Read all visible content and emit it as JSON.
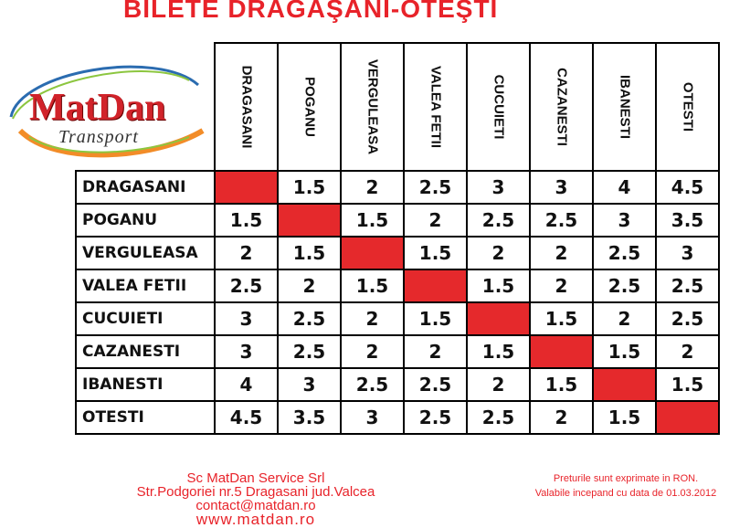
{
  "title": "BILETE DRĂGĂŞANI-OTEŞTI",
  "logo": {
    "name": "MatDan",
    "sub": "Transport",
    "colors": {
      "red": "#d1232a",
      "orange": "#f28c28",
      "green": "#8cc63f",
      "blue": "#2b6cb0"
    }
  },
  "stations": [
    "DRAGASANI",
    "POGANU",
    "VERGULEASA",
    "VALEA FETII",
    "CUCUIETI",
    "CAZANESTI",
    "IBANESTI",
    "OTESTI"
  ],
  "prices": [
    [
      "",
      "1.5",
      "2",
      "2.5",
      "3",
      "3",
      "4",
      "4.5"
    ],
    [
      "1.5",
      "",
      "1.5",
      "2",
      "2.5",
      "2.5",
      "3",
      "3.5"
    ],
    [
      "2",
      "1.5",
      "",
      "1.5",
      "2",
      "2",
      "2.5",
      "3"
    ],
    [
      "2.5",
      "2",
      "1.5",
      "",
      "1.5",
      "2",
      "2.5",
      "2.5"
    ],
    [
      "3",
      "2.5",
      "2",
      "1.5",
      "",
      "1.5",
      "2",
      "2.5"
    ],
    [
      "3",
      "2.5",
      "2",
      "2",
      "1.5",
      "",
      "1.5",
      "2"
    ],
    [
      "4",
      "3",
      "2.5",
      "2.5",
      "2",
      "1.5",
      "",
      "1.5"
    ],
    [
      "4.5",
      "3.5",
      "3",
      "2.5",
      "2.5",
      "2",
      "1.5",
      ""
    ]
  ],
  "diagonal_color": "#e5292c",
  "footer": {
    "company": "Sc MatDan Service Srl",
    "address": "Str.Podgoriei nr.5 Dragasani jud.Valcea",
    "email": "contact@matdan.ro",
    "website": "www.matdan.ro",
    "note1": "Preturile sunt exprimate in RON.",
    "note2": "Valabile incepand cu data de 01.03.2012"
  }
}
